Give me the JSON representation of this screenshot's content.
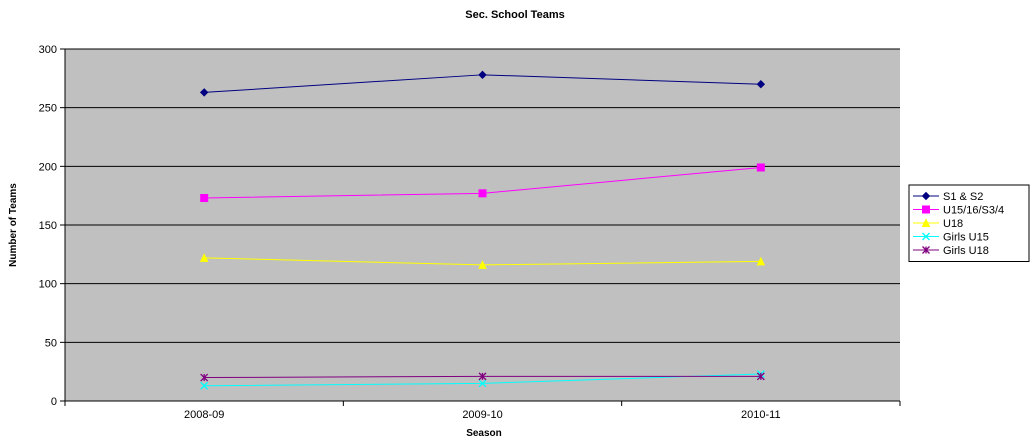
{
  "chart_data": {
    "type": "line",
    "title": "Sec. School Teams",
    "xlabel": "Season",
    "ylabel": "Number of Teams",
    "categories": [
      "2008-09",
      "2009-10",
      "2010-11"
    ],
    "ylim": [
      0,
      300
    ],
    "yticks": [
      "0",
      "50",
      "100",
      "150",
      "200",
      "250",
      "300"
    ],
    "grid": true,
    "legend_position": "right",
    "plot_background": "#c0c0c0",
    "series": [
      {
        "name": "S1 & S2",
        "values": [
          263,
          278,
          270
        ],
        "color": "#000080",
        "marker": "diamond"
      },
      {
        "name": "U15/16/S3/4",
        "values": [
          173,
          177,
          199
        ],
        "color": "#ff00ff",
        "marker": "square"
      },
      {
        "name": "U18",
        "values": [
          122,
          116,
          119
        ],
        "color": "#ffff00",
        "marker": "triangle"
      },
      {
        "name": "Girls U15",
        "values": [
          13,
          15,
          23
        ],
        "color": "#00ffff",
        "marker": "x"
      },
      {
        "name": "Girls U18",
        "values": [
          20,
          21,
          21
        ],
        "color": "#800080",
        "marker": "star"
      }
    ]
  }
}
